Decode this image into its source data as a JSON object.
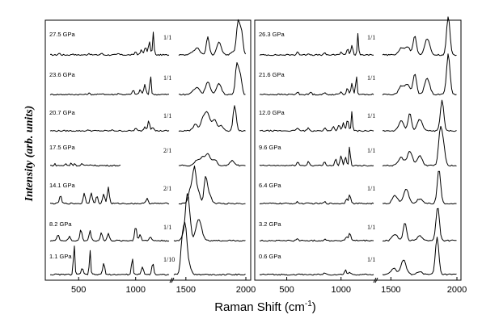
{
  "chart_data": {
    "type": "line",
    "xlabel": "Raman Shift (cm",
    "xlabel_sup": "-1",
    "xlabel_end": ")",
    "ylabel": "Intensity (arb. units)",
    "panels": [
      {
        "name": "left",
        "x_ticks": [
          500,
          1000,
          1500,
          2000
        ],
        "series": [
          {
            "pressure": "27.5 GPa",
            "ratio": "1/1",
            "low_peaks": [
              [
                330,
                2
              ],
              [
                450,
                1.5
              ],
              [
                590,
                2
              ],
              [
                700,
                2
              ],
              [
                850,
                1.5
              ],
              [
                1000,
                4
              ],
              [
                1050,
                6
              ],
              [
                1085,
                10
              ],
              [
                1120,
                16
              ],
              [
                1155,
                28
              ]
            ],
            "high_peaks": [
              [
                1530,
                4
              ],
              [
                1570,
                8
              ],
              [
                1660,
                22
              ],
              [
                1760,
                16
              ],
              [
                1890,
                4
              ],
              [
                1930,
                40
              ],
              [
                1960,
                30
              ]
            ]
          },
          {
            "pressure": "23.6 GPa",
            "ratio": "1/1",
            "low_peaks": [
              [
                590,
                1.5
              ],
              [
                710,
                1.5
              ],
              [
                850,
                1.5
              ],
              [
                980,
                5
              ],
              [
                1040,
                6
              ],
              [
                1080,
                12
              ],
              [
                1130,
                26
              ]
            ],
            "high_peaks": [
              [
                1530,
                4
              ],
              [
                1570,
                8
              ],
              [
                1660,
                16
              ],
              [
                1760,
                14
              ],
              [
                1920,
                38
              ],
              [
                1950,
                24
              ]
            ]
          },
          {
            "pressure": "20.7 GPa",
            "ratio": "1/1",
            "low_peaks": [
              [
                590,
                1
              ],
              [
                800,
                1
              ],
              [
                1000,
                3
              ],
              [
                1080,
                5
              ],
              [
                1115,
                13
              ],
              [
                1150,
                5
              ]
            ],
            "high_peaks": [
              [
                1550,
                8
              ],
              [
                1620,
                16
              ],
              [
                1660,
                20
              ],
              [
                1720,
                14
              ],
              [
                1780,
                6
              ],
              [
                1900,
                32
              ]
            ]
          },
          {
            "pressure": "17.5 GPa",
            "ratio": "2/1",
            "low_peaks": [
              [
                320,
                2
              ],
              [
                480,
                2.5
              ],
              [
                560,
                4
              ],
              [
                610,
                3
              ],
              [
                720,
                3
              ],
              [
                850,
                2
              ]
            ],
            "high_peaks": [
              [
                1560,
                6
              ],
              [
                1610,
                10
              ],
              [
                1660,
                14
              ],
              [
                1720,
                8
              ],
              [
                1880,
                6
              ]
            ]
          },
          {
            "pressure": "14.1 GPa",
            "ratio": "2/1",
            "low_peaks": [
              [
                340,
                10
              ],
              [
                550,
                13
              ],
              [
                610,
                14
              ],
              [
                660,
                9
              ],
              [
                720,
                12
              ],
              [
                760,
                20
              ],
              [
                1100,
                7
              ]
            ],
            "high_peaks": [
              [
                1510,
                20
              ],
              [
                1540,
                34
              ],
              [
                1570,
                16
              ],
              [
                1640,
                30
              ],
              [
                1670,
                12
              ]
            ]
          },
          {
            "pressure": "8.2 GPa",
            "ratio": "1/1",
            "low_peaks": [
              [
                320,
                8
              ],
              [
                420,
                5
              ],
              [
                520,
                14
              ],
              [
                600,
                12
              ],
              [
                700,
                10
              ],
              [
                760,
                9
              ],
              [
                1000,
                18
              ],
              [
                1040,
                8
              ],
              [
                1130,
                5
              ]
            ],
            "high_peaks": [
              [
                1490,
                10
              ],
              [
                1510,
                44
              ],
              [
                1530,
                24
              ],
              [
                1600,
                18
              ],
              [
                1620,
                12
              ]
            ]
          },
          {
            "pressure": "1.1 GPa",
            "ratio": "1/10",
            "low_peaks": [
              [
                460,
                40
              ],
              [
                530,
                8
              ],
              [
                600,
                30
              ],
              [
                720,
                14
              ],
              [
                970,
                24
              ],
              [
                1060,
                10
              ],
              [
                1150,
                14
              ]
            ],
            "high_peaks": [
              [
                1470,
                40
              ],
              [
                1495,
                50
              ],
              [
                1520,
                14
              ]
            ]
          }
        ]
      },
      {
        "name": "right",
        "x_ticks": [
          500,
          1000,
          1500,
          2000
        ],
        "series": [
          {
            "pressure": "26.3 GPa",
            "ratio": "1/1",
            "low_peaks": [
              [
                600,
                4
              ],
              [
                700,
                2
              ],
              [
                850,
                2
              ],
              [
                1000,
                4
              ],
              [
                1060,
                8
              ],
              [
                1100,
                12
              ],
              [
                1155,
                26
              ]
            ],
            "high_peaks": [
              [
                1550,
                8
              ],
              [
                1600,
                10
              ],
              [
                1660,
                24
              ],
              [
                1760,
                20
              ],
              [
                1930,
                48
              ]
            ]
          },
          {
            "pressure": "21.6 GPa",
            "ratio": "1/1",
            "low_peaks": [
              [
                600,
                3
              ],
              [
                720,
                3
              ],
              [
                850,
                2
              ],
              [
                1000,
                4
              ],
              [
                1060,
                8
              ],
              [
                1100,
                14
              ],
              [
                1140,
                26
              ]
            ],
            "high_peaks": [
              [
                1550,
                10
              ],
              [
                1600,
                12
              ],
              [
                1660,
                26
              ],
              [
                1760,
                20
              ],
              [
                1930,
                50
              ]
            ]
          },
          {
            "pressure": "12.0 GPa",
            "ratio": "1/1",
            "low_peaks": [
              [
                600,
                4
              ],
              [
                700,
                4
              ],
              [
                850,
                4
              ],
              [
                930,
                6
              ],
              [
                980,
                8
              ],
              [
                1020,
                10
              ],
              [
                1060,
                14
              ],
              [
                1100,
                24
              ]
            ],
            "high_peaks": [
              [
                1550,
                12
              ],
              [
                1620,
                22
              ],
              [
                1700,
                14
              ],
              [
                1880,
                38
              ]
            ]
          },
          {
            "pressure": "9.6 GPa",
            "ratio": "1/1",
            "low_peaks": [
              [
                600,
                5
              ],
              [
                700,
                5
              ],
              [
                850,
                5
              ],
              [
                950,
                8
              ],
              [
                1000,
                12
              ],
              [
                1040,
                10
              ],
              [
                1080,
                26
              ]
            ],
            "high_peaks": [
              [
                1550,
                10
              ],
              [
                1620,
                18
              ],
              [
                1700,
                12
              ],
              [
                1865,
                42
              ],
              [
                1890,
                26
              ]
            ]
          },
          {
            "pressure": "6.4 GPa",
            "ratio": "1/1",
            "low_peaks": [
              [
                600,
                2
              ],
              [
                850,
                2
              ],
              [
                1050,
                6
              ],
              [
                1080,
                12
              ]
            ],
            "high_peaks": [
              [
                1500,
                10
              ],
              [
                1590,
                18
              ],
              [
                1700,
                6
              ],
              [
                1855,
                42
              ]
            ]
          },
          {
            "pressure": "3.2 GPa",
            "ratio": "1/1",
            "low_peaks": [
              [
                600,
                2
              ],
              [
                850,
                2
              ],
              [
                1050,
                5
              ],
              [
                1080,
                10
              ]
            ],
            "high_peaks": [
              [
                1500,
                8
              ],
              [
                1580,
                22
              ],
              [
                1700,
                6
              ],
              [
                1845,
                42
              ]
            ]
          },
          {
            "pressure": "0.6 GPa",
            "ratio": "1/1",
            "low_peaks": [
              [
                850,
                2
              ],
              [
                1040,
                6
              ],
              [
                1080,
                3
              ]
            ],
            "high_peaks": [
              [
                1490,
                8
              ],
              [
                1570,
                18
              ],
              [
                1700,
                4
              ],
              [
                1840,
                46
              ]
            ]
          }
        ]
      }
    ]
  }
}
